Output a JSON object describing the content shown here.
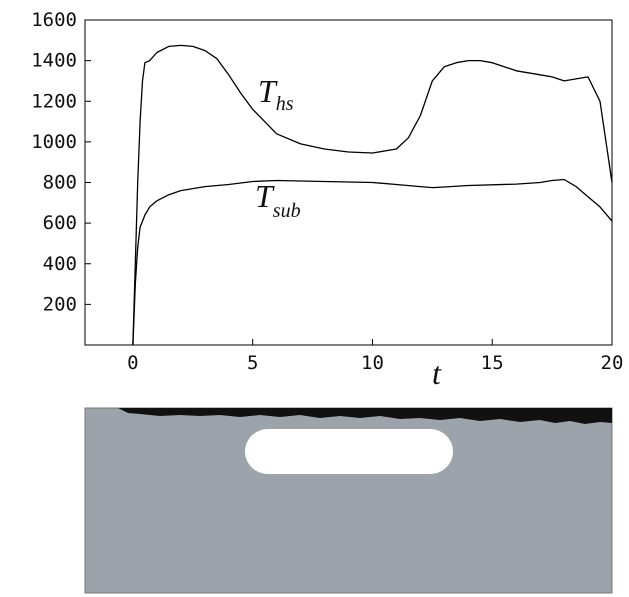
{
  "chart_data": {
    "type": "line",
    "title": "",
    "xlabel": "t",
    "ylabel": "",
    "xlim": [
      -2,
      20
    ],
    "ylim": [
      0,
      1600
    ],
    "xticks": [
      0,
      5,
      10,
      15,
      20
    ],
    "yticks": [
      200,
      400,
      600,
      800,
      1000,
      1200,
      1400,
      1600
    ],
    "grid": false,
    "legend": "none",
    "series": [
      {
        "name": "T_hs",
        "label_main": "T",
        "label_sub": "hs",
        "color": "#000000",
        "x": [
          0,
          0.1,
          0.2,
          0.3,
          0.4,
          0.5,
          0.7,
          1.0,
          1.5,
          2.0,
          2.5,
          3.0,
          3.5,
          4.0,
          4.5,
          5.0,
          5.5,
          6.0,
          7.0,
          8.0,
          9.0,
          10.0,
          11.0,
          11.5,
          12.0,
          12.5,
          13.0,
          13.5,
          14.0,
          14.5,
          15.0,
          15.5,
          16.0,
          16.5,
          17.0,
          17.5,
          18.0,
          18.5,
          19.0,
          19.5,
          20.0
        ],
        "y": [
          0,
          400,
          800,
          1100,
          1300,
          1390,
          1400,
          1440,
          1470,
          1475,
          1470,
          1450,
          1410,
          1330,
          1240,
          1160,
          1100,
          1040,
          990,
          965,
          950,
          945,
          965,
          1020,
          1130,
          1300,
          1370,
          1390,
          1400,
          1400,
          1390,
          1370,
          1350,
          1340,
          1330,
          1320,
          1300,
          1310,
          1320,
          1200,
          800
        ]
      },
      {
        "name": "T_sub",
        "label_main": "T",
        "label_sub": "sub",
        "color": "#000000",
        "x": [
          0,
          0.1,
          0.2,
          0.3,
          0.5,
          0.7,
          1.0,
          1.5,
          2.0,
          3.0,
          4.0,
          5.0,
          6.0,
          8.0,
          10.0,
          11.0,
          12.0,
          12.5,
          13.0,
          14.0,
          16.0,
          17.0,
          17.5,
          18.0,
          18.5,
          19.0,
          19.5,
          20.0
        ],
        "y": [
          0,
          300,
          480,
          580,
          640,
          680,
          710,
          740,
          760,
          780,
          790,
          805,
          810,
          805,
          800,
          790,
          780,
          775,
          778,
          785,
          792,
          800,
          810,
          815,
          780,
          730,
          680,
          610
        ]
      }
    ]
  },
  "panel": {
    "colors": {
      "background": "#9ca3aa",
      "top_band": "#111111",
      "hotspot": "#ffffff"
    }
  }
}
